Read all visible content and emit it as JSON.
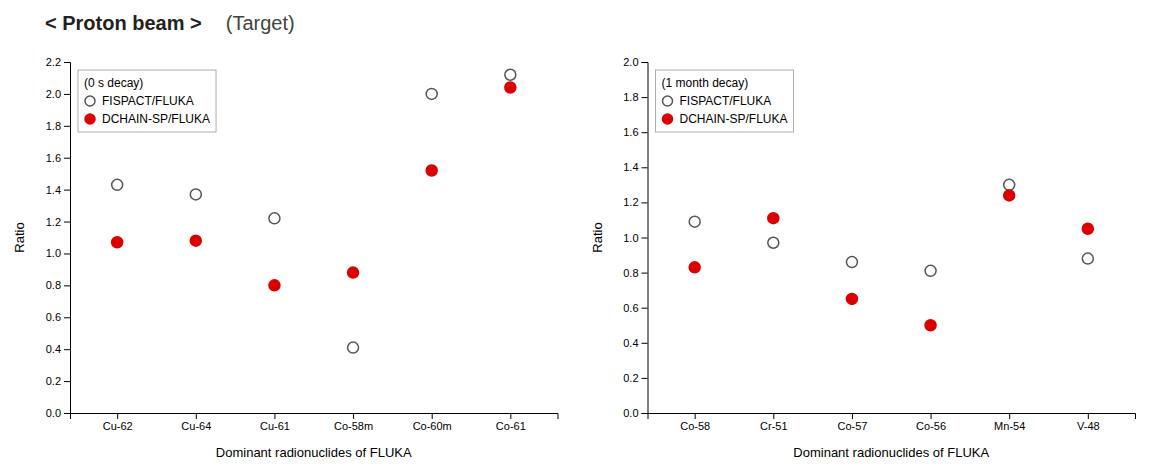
{
  "chart_data": [
    {
      "type": "scatter",
      "title": "< Proton beam >",
      "subtitle": "(Target)",
      "categories": [
        "Cu-62",
        "Cu-64",
        "Cu-61",
        "Co-58m",
        "Co-60m",
        "Co-61"
      ],
      "series": [
        {
          "name": "FISPACT/FLUKA",
          "color": "#555555",
          "marker": "circle-open",
          "values": [
            1.43,
            1.37,
            1.22,
            0.41,
            2.0,
            2.12
          ]
        },
        {
          "name": "DCHAIN-SP/FLUKA",
          "color": "#dd0000",
          "marker": "circle",
          "values": [
            1.07,
            1.08,
            0.8,
            0.88,
            1.52,
            2.04
          ]
        }
      ],
      "xlabel": "Dominant radionuclides of FLUKA",
      "ylabel": "Ratio",
      "ylim": [
        0.0,
        2.2
      ],
      "yticks": [
        {
          "value": 0,
          "label": "0.0"
        },
        0.2,
        0.4,
        0.6,
        0.8,
        {
          "value": 1,
          "label": "1.0"
        },
        1.2,
        1.4,
        1.6,
        1.8,
        {
          "value": 2,
          "label": "2.0"
        },
        2.2
      ],
      "legend": "upper left",
      "annotations": [
        "(0 s decay)"
      ]
    },
    {
      "type": "scatter",
      "categories": [
        "Co-58",
        "Cr-51",
        "Co-57",
        "Co-56",
        "Mn-54",
        "V-48"
      ],
      "series": [
        {
          "name": "FISPACT/FLUKA",
          "color": "#555555",
          "marker": "circle-open",
          "values": [
            1.09,
            0.97,
            0.86,
            0.81,
            1.3,
            0.88
          ]
        },
        {
          "name": "DCHAIN-SP/FLUKA",
          "color": "#dd0000",
          "marker": "circle",
          "values": [
            0.83,
            1.11,
            0.65,
            0.5,
            1.24,
            1.05
          ]
        }
      ],
      "xlabel": "Dominant radionuclides of FLUKA",
      "ylabel": "Ratio",
      "ylim": [
        0.0,
        2.0
      ],
      "yticks": [
        {
          "value": 0,
          "label": "0.0"
        },
        0.2,
        0.4,
        0.6,
        0.8,
        {
          "value": 1,
          "label": "1.0"
        },
        1.2,
        1.4,
        1.6,
        1.8,
        {
          "value": 2,
          "label": "2.0"
        }
      ],
      "legend": "upper left",
      "annotations": [
        "(1 month decay)"
      ]
    }
  ]
}
